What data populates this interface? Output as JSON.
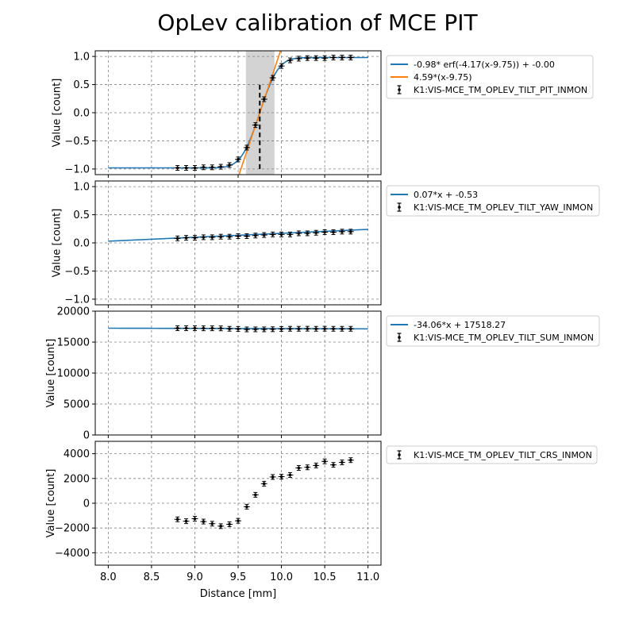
{
  "title": "OpLev calibration of MCE PIT",
  "xlabel": "Distance [mm]",
  "xlim": [
    7.85,
    11.15
  ],
  "xticks": [
    8.0,
    8.5,
    9.0,
    9.5,
    10.0,
    10.5,
    11.0
  ],
  "xtick_labels": [
    "8.0",
    "8.5",
    "9.0",
    "9.5",
    "10.0",
    "10.5",
    "11.0"
  ],
  "chart_data": [
    {
      "type": "line",
      "ylabel": "Value [count]",
      "ylim": [
        -1.1,
        1.1
      ],
      "yticks": [
        -1.0,
        -0.5,
        0.0,
        0.5,
        1.0
      ],
      "ytick_labels": [
        "−1.0",
        "−0.5",
        "0.0",
        "0.5",
        "1.0"
      ],
      "grid": true,
      "legend_position": "outside-right",
      "shaded_x_range": [
        9.59,
        9.92
      ],
      "vertical_line_x": 9.75,
      "vertical_line_y_range": [
        -1.0,
        0.5
      ],
      "fits": [
        {
          "name": "-0.98* erf(-4.17(x-9.75)) + -0.00",
          "kind": "erf",
          "amp": -0.98,
          "k": -4.17,
          "x0": 9.75,
          "c": 0.0,
          "x_range": [
            8.0,
            11.0
          ],
          "color": "#1f77b4"
        },
        {
          "name": "4.59*(x-9.75)",
          "kind": "linear",
          "slope": 4.59,
          "x0": 9.75,
          "c": 0.0,
          "x_range": [
            9.5,
            10.0
          ],
          "color": "#ff7f0e"
        }
      ],
      "series": [
        {
          "name": "K1:VIS-MCE_TM_OPLEV_TILT_PIT_INMON",
          "x": [
            8.8,
            8.9,
            9.0,
            9.1,
            9.2,
            9.3,
            9.4,
            9.5,
            9.6,
            9.7,
            9.8,
            9.9,
            10.0,
            10.1,
            10.2,
            10.3,
            10.4,
            10.5,
            10.6,
            10.7,
            10.8
          ],
          "y": [
            -0.98,
            -0.98,
            -0.98,
            -0.97,
            -0.97,
            -0.96,
            -0.93,
            -0.83,
            -0.62,
            -0.22,
            0.24,
            0.62,
            0.83,
            0.93,
            0.96,
            0.97,
            0.97,
            0.97,
            0.98,
            0.98,
            0.98
          ]
        }
      ]
    },
    {
      "type": "line",
      "ylabel": "Value [count]",
      "ylim": [
        -1.1,
        1.1
      ],
      "yticks": [
        -1.0,
        -0.5,
        0.0,
        0.5,
        1.0
      ],
      "ytick_labels": [
        "−1.0",
        "−0.5",
        "0.0",
        "0.5",
        "1.0"
      ],
      "grid": true,
      "legend_position": "outside-right",
      "fits": [
        {
          "name": "0.07*x + -0.53",
          "kind": "linear_abs",
          "slope": 0.07,
          "c": -0.53,
          "x_range": [
            8.0,
            11.0
          ],
          "color": "#1f77b4"
        }
      ],
      "series": [
        {
          "name": "K1:VIS-MCE_TM_OPLEV_TILT_YAW_INMON",
          "x": [
            8.8,
            8.9,
            9.0,
            9.1,
            9.2,
            9.3,
            9.4,
            9.5,
            9.6,
            9.7,
            9.8,
            9.9,
            10.0,
            10.1,
            10.2,
            10.3,
            10.4,
            10.5,
            10.6,
            10.7,
            10.8
          ],
          "y": [
            0.08,
            0.09,
            0.09,
            0.1,
            0.1,
            0.11,
            0.11,
            0.12,
            0.12,
            0.13,
            0.14,
            0.15,
            0.15,
            0.15,
            0.17,
            0.17,
            0.18,
            0.19,
            0.19,
            0.2,
            0.2
          ]
        }
      ]
    },
    {
      "type": "line",
      "ylabel": "Value [count]",
      "ylim": [
        0,
        20000
      ],
      "yticks": [
        0,
        5000,
        10000,
        15000,
        20000
      ],
      "ytick_labels": [
        "0",
        "5000",
        "10000",
        "15000",
        "20000"
      ],
      "grid": true,
      "legend_position": "outside-right",
      "fits": [
        {
          "name": "-34.06*x + 17518.27",
          "kind": "linear_abs",
          "slope": -34.06,
          "c": 17518.27,
          "x_range": [
            8.0,
            11.0
          ],
          "color": "#1f77b4"
        }
      ],
      "series": [
        {
          "name": "K1:VIS-MCE_TM_OPLEV_TILT_SUM_INMON",
          "x": [
            8.8,
            8.9,
            9.0,
            9.1,
            9.2,
            9.3,
            9.4,
            9.5,
            9.6,
            9.7,
            9.8,
            9.9,
            10.0,
            10.1,
            10.2,
            10.3,
            10.4,
            10.5,
            10.6,
            10.7,
            10.8
          ],
          "y": [
            17250,
            17240,
            17250,
            17230,
            17230,
            17220,
            17150,
            17130,
            17050,
            17060,
            17060,
            17080,
            17130,
            17150,
            17150,
            17160,
            17150,
            17160,
            17150,
            17150,
            17150
          ]
        }
      ]
    },
    {
      "type": "scatter",
      "ylabel": "Value [count]",
      "ylim": [
        -5000,
        5000
      ],
      "yticks": [
        -4000,
        -2000,
        0,
        2000,
        4000
      ],
      "ytick_labels": [
        "−4000",
        "−2000",
        "0",
        "2000",
        "4000"
      ],
      "grid": true,
      "legend_position": "outside-right",
      "fits": [],
      "series": [
        {
          "name": "K1:VIS-MCE_TM_OPLEV_TILT_CRS_INMON",
          "x": [
            8.8,
            8.9,
            9.0,
            9.1,
            9.2,
            9.3,
            9.4,
            9.5,
            9.6,
            9.7,
            9.8,
            9.9,
            10.0,
            10.1,
            10.2,
            10.3,
            10.4,
            10.5,
            10.6,
            10.7,
            10.8
          ],
          "y": [
            -1300,
            -1450,
            -1250,
            -1480,
            -1650,
            -1850,
            -1700,
            -1420,
            -280,
            680,
            1580,
            2120,
            2150,
            2280,
            2850,
            2900,
            3050,
            3380,
            3100,
            3300,
            3480
          ]
        }
      ]
    }
  ]
}
